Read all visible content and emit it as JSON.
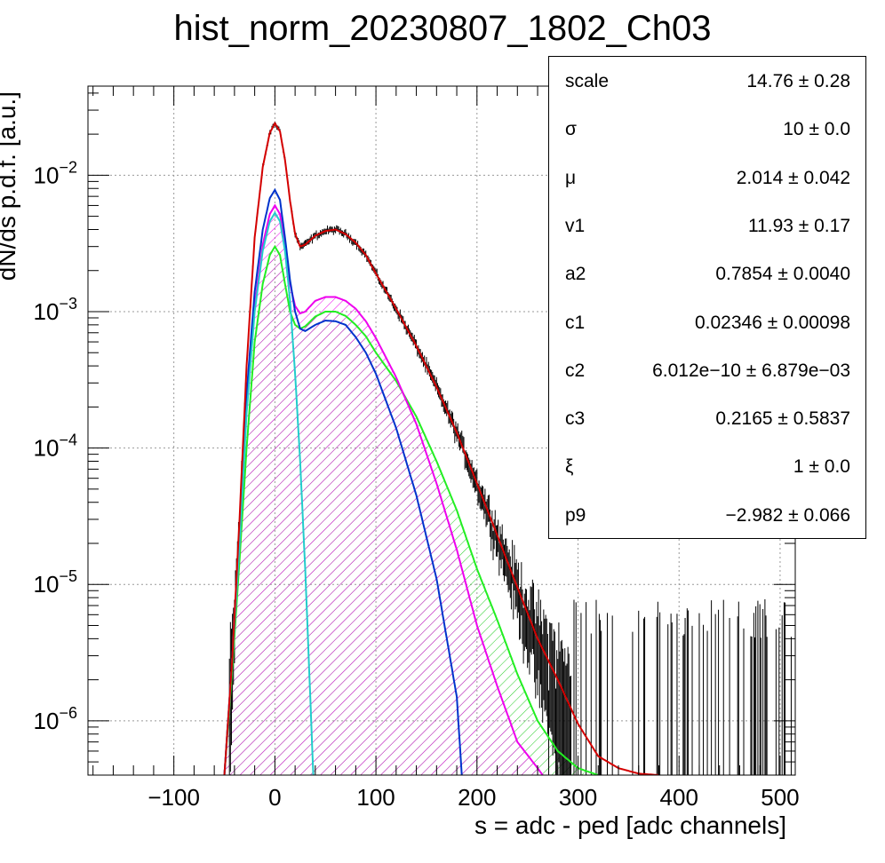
{
  "title": "hist_norm_20230807_1802_Ch03",
  "chart_data": {
    "type": "line",
    "xlabel": "s = adc - ped [adc channels]",
    "ylabel": "dN/ds p.d.f. [a.u.]",
    "xlim": [
      -185,
      515
    ],
    "ylim": [
      4e-07,
      0.045
    ],
    "yscale": "log",
    "grid": true,
    "x_ticks": [
      -100,
      0,
      100,
      200,
      300,
      400,
      500
    ],
    "x_tick_labels": [
      "−100",
      "0",
      "100",
      "200",
      "300",
      "400",
      "500"
    ],
    "y_ticks": [
      {
        "value": 1e-06,
        "mantissa": "10",
        "exp": "−6"
      },
      {
        "value": 1e-05,
        "mantissa": "10",
        "exp": "−5"
      },
      {
        "value": 0.0001,
        "mantissa": "10",
        "exp": "−4"
      },
      {
        "value": 0.001,
        "mantissa": "10",
        "exp": "−3"
      },
      {
        "value": 0.01,
        "mantissa": "10",
        "exp": "−2"
      }
    ],
    "series": [
      {
        "color": "#d40000",
        "x": [
          -50,
          -42,
          -35,
          -28,
          -20,
          -12,
          -5,
          0,
          5,
          10,
          15,
          20,
          25,
          30,
          40,
          50,
          60,
          70,
          80,
          90,
          100,
          120,
          140,
          160,
          180,
          200,
          220,
          240,
          260,
          280,
          300,
          320,
          340,
          360,
          380
        ],
        "y": [
          4e-07,
          3e-06,
          3e-05,
          0.0004,
          0.0035,
          0.0115,
          0.0205,
          0.024,
          0.021,
          0.013,
          0.0065,
          0.0037,
          0.003,
          0.0031,
          0.0036,
          0.0039,
          0.004,
          0.0037,
          0.0032,
          0.0026,
          0.0019,
          0.00105,
          0.00056,
          0.00028,
          0.00013,
          5.5e-05,
          2.3e-05,
          9.5e-06,
          4e-06,
          2e-06,
          9.5e-07,
          5.5e-07,
          4.5e-07,
          4.1e-07,
          4e-07
        ]
      },
      {
        "color": "#0033cc",
        "x": [
          -50,
          -42,
          -35,
          -28,
          -20,
          -12,
          -5,
          0,
          5,
          10,
          15,
          20,
          25,
          30,
          40,
          50,
          60,
          70,
          80,
          90,
          100,
          120,
          140,
          160,
          180,
          185
        ],
        "y": [
          4e-07,
          3e-06,
          2.5e-05,
          0.00025,
          0.0014,
          0.004,
          0.0068,
          0.0078,
          0.0066,
          0.0035,
          0.0017,
          0.001,
          0.00075,
          0.00072,
          0.0008,
          0.00086,
          0.00085,
          0.0008,
          0.00065,
          0.0005,
          0.00035,
          0.00014,
          4.5e-05,
          1.1e-05,
          1.5e-06,
          4e-07
        ]
      },
      {
        "color": "#ee00ee",
        "x": [
          -50,
          -42,
          -35,
          -28,
          -20,
          -12,
          -5,
          0,
          5,
          10,
          15,
          20,
          25,
          30,
          40,
          50,
          60,
          70,
          80,
          90,
          100,
          120,
          140,
          160,
          180,
          200,
          220,
          240,
          260,
          265
        ],
        "y": [
          4e-07,
          3e-06,
          2e-05,
          0.0002,
          0.0011,
          0.0031,
          0.0052,
          0.006,
          0.0052,
          0.003,
          0.0016,
          0.0011,
          0.00097,
          0.001,
          0.0012,
          0.00128,
          0.00128,
          0.0012,
          0.00105,
          0.00085,
          0.00064,
          0.00033,
          0.00015,
          5.5e-05,
          1.8e-05,
          5e-06,
          1.8e-06,
          7e-07,
          4.5e-07,
          4e-07
        ]
      },
      {
        "color": "#22ee22",
        "x": [
          -50,
          -42,
          -35,
          -28,
          -20,
          -12,
          -5,
          0,
          5,
          10,
          15,
          20,
          25,
          30,
          40,
          50,
          60,
          70,
          80,
          90,
          100,
          120,
          140,
          160,
          180,
          200,
          220,
          240,
          260,
          280,
          300,
          320
        ],
        "y": [
          4e-07,
          2.5e-06,
          1.5e-05,
          0.0001,
          0.0006,
          0.0016,
          0.0026,
          0.003,
          0.0026,
          0.0016,
          0.001,
          0.0008,
          0.00075,
          0.00078,
          0.00092,
          0.001,
          0.001,
          0.00093,
          0.0008,
          0.00066,
          0.0005,
          0.00031,
          0.00017,
          8e-05,
          3.5e-05,
          1.3e-05,
          5.5e-06,
          2.2e-06,
          1e-06,
          6e-07,
          4.5e-07,
          4e-07
        ]
      },
      {
        "color": "#22cccc",
        "x": [
          -50,
          -42,
          -35,
          -28,
          -20,
          -12,
          -5,
          0,
          5,
          10,
          15,
          20,
          25,
          30,
          35,
          38
        ],
        "y": [
          4e-07,
          3e-06,
          2e-05,
          0.00018,
          0.001,
          0.0028,
          0.0046,
          0.0053,
          0.0046,
          0.0028,
          0.0012,
          0.00035,
          8e-05,
          1.3e-05,
          1.5e-06,
          4e-07
        ]
      }
    ]
  },
  "stats": [
    {
      "name": "scale",
      "value": "14.76 ± 0.28"
    },
    {
      "name": "σ",
      "value": "10 ± 0.0"
    },
    {
      "name": "μ",
      "value": "2.014 ± 0.042"
    },
    {
      "name": "v1",
      "value": "11.93 ± 0.17"
    },
    {
      "name": "a2",
      "value": "0.7854 ± 0.0040"
    },
    {
      "name": "c1",
      "value": "0.02346 ± 0.00098"
    },
    {
      "name": "c2",
      "value": "6.012e−10 ± 6.879e−03"
    },
    {
      "name": "c3",
      "value": "0.2165 ± 0.5837"
    },
    {
      "name": "ξ",
      "value": "1 ± 0.0"
    },
    {
      "name": "p9",
      "value": "−2.982 ± 0.066"
    }
  ]
}
